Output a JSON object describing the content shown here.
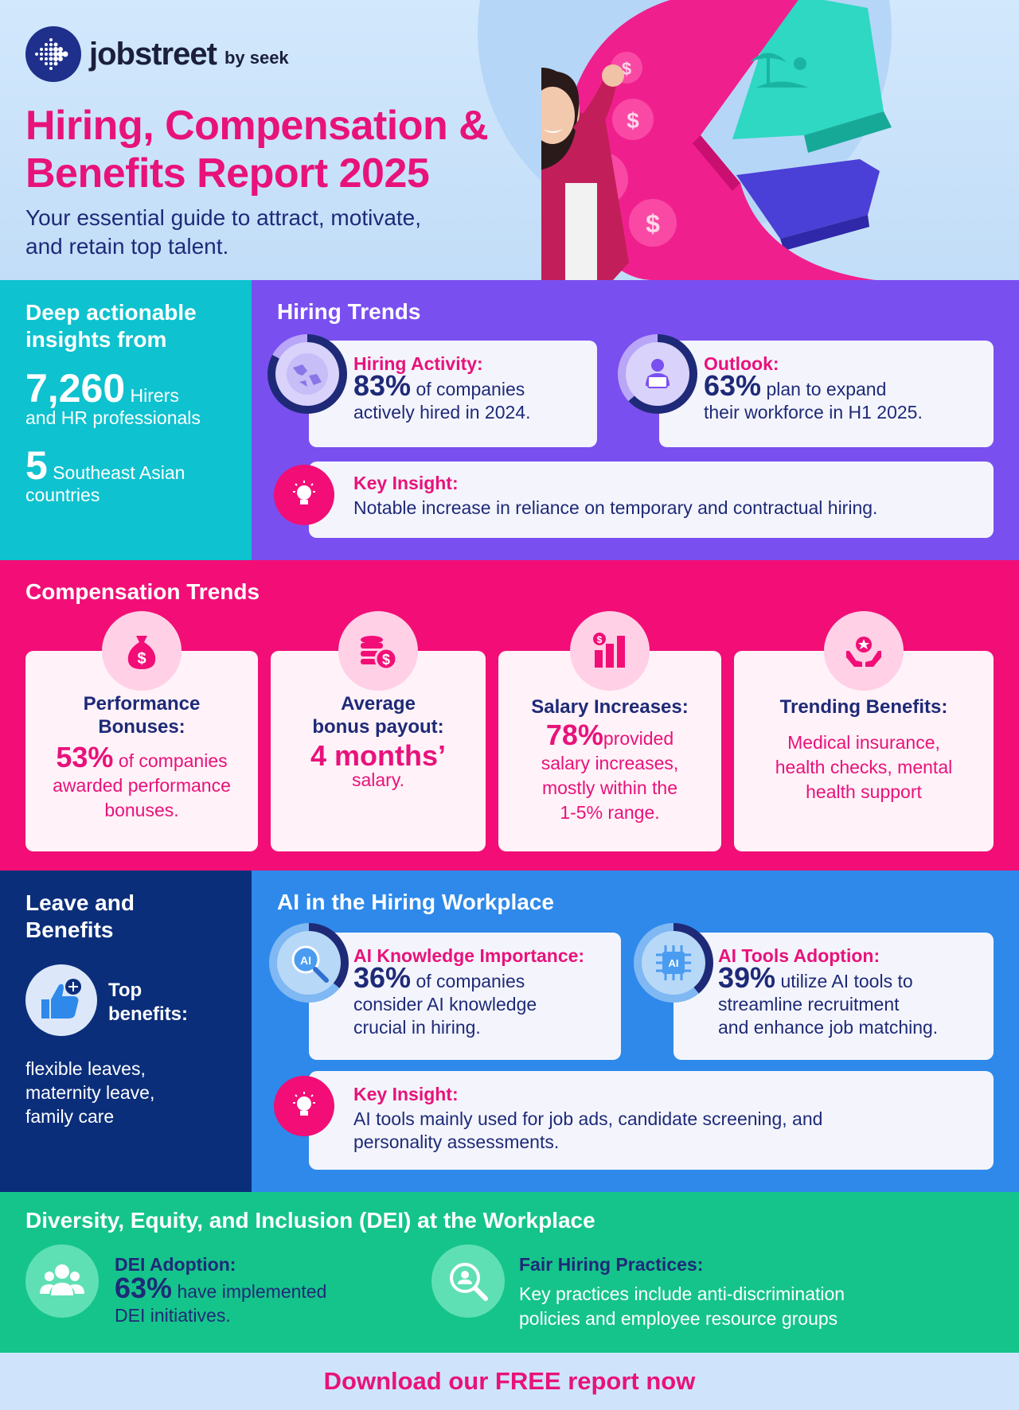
{
  "brand": {
    "name": "jobstreet",
    "by": "by seek"
  },
  "header": {
    "title_line1": "Hiring, Compensation &",
    "title_line2": "Benefits Report 2025",
    "subtitle_line1": "Your essential guide to attract, motivate,",
    "subtitle_line2": "and retain top talent."
  },
  "insights": {
    "heading_line1": "Deep actionable",
    "heading_line2": "insights from",
    "count1": "7,260",
    "count1_label_a": "Hirers",
    "count1_label_b": "and HR professionals",
    "count2": "5",
    "count2_label_a": "Southeast Asian",
    "count2_label_b": "countries"
  },
  "hiring": {
    "title": "Hiring Trends",
    "activity": {
      "label": "Hiring Activity:",
      "value": "83%",
      "text_a": "of companies",
      "text_b": "actively hired in 2024.",
      "icon": "globe-asia-icon"
    },
    "outlook": {
      "label": "Outlook:",
      "value": "63%",
      "text_a": "plan to expand",
      "text_b": "their workforce in H1 2025.",
      "icon": "person-laptop-icon"
    },
    "insight": {
      "label": "Key Insight:",
      "text": "Notable increase in reliance on temporary and contractual hiring.",
      "icon": "lightbulb-icon"
    }
  },
  "compensation": {
    "title": "Compensation  Trends",
    "cards": [
      {
        "icon": "money-bag-icon",
        "head_a": "Performance",
        "head_b": "Bonuses:",
        "value": "53%",
        "text_a": "of companies",
        "text_b": "awarded performance",
        "text_c": "bonuses."
      },
      {
        "icon": "coins-stack-icon",
        "head_a": "Average",
        "head_b": "bonus payout:",
        "value": "4 months’",
        "text_a": "salary."
      },
      {
        "icon": "bar-chart-icon",
        "head_a": "Salary Increases:",
        "value": "78%",
        "text_a": "provided",
        "text_b": "salary increases,",
        "text_c": "mostly within the",
        "text_d": "1-5% range."
      },
      {
        "icon": "hands-star-icon",
        "head_a": "Trending Benefits:",
        "text_a": "Medical insurance,",
        "text_b": "health checks, mental",
        "text_c": "health support"
      }
    ]
  },
  "leave": {
    "title_line1": "Leave and",
    "title_line2": "Benefits",
    "top_a": "Top",
    "top_b": "benefits:",
    "list_a": "flexible leaves,",
    "list_b": "maternity leave,",
    "list_c": "family care",
    "icon": "thumbs-up-plus-icon"
  },
  "ai": {
    "title": "AI in the Hiring Workplace",
    "knowledge": {
      "label": "AI Knowledge Importance:",
      "value": "36%",
      "text_a": "of companies",
      "text_b": "consider AI knowledge",
      "text_c": "crucial in hiring.",
      "icon_text": "AI"
    },
    "tools": {
      "label": "AI Tools Adoption:",
      "value": "39%",
      "text_a": "utilize AI tools to",
      "text_b": "streamline recruitment",
      "text_c": "and enhance job matching.",
      "icon_text": "AI"
    },
    "insight": {
      "label": "Key Insight:",
      "text_a": "AI tools mainly used for job ads, candidate screening, and",
      "text_b": "personality assessments."
    }
  },
  "dei": {
    "title": "Diversity, Equity, and Inclusion (DEI) at the Workplace",
    "adoption": {
      "label": "DEI Adoption:",
      "value": "63%",
      "text_a": "have implemented",
      "text_b": "DEI initiatives.",
      "icon": "group-people-icon"
    },
    "fair": {
      "label": "Fair Hiring Practices:",
      "text_a": "Key practices include anti-discrimination",
      "text_b": "policies and employee resource groups",
      "icon": "magnifier-person-icon"
    }
  },
  "footer": {
    "cta": "Download our FREE report now"
  }
}
